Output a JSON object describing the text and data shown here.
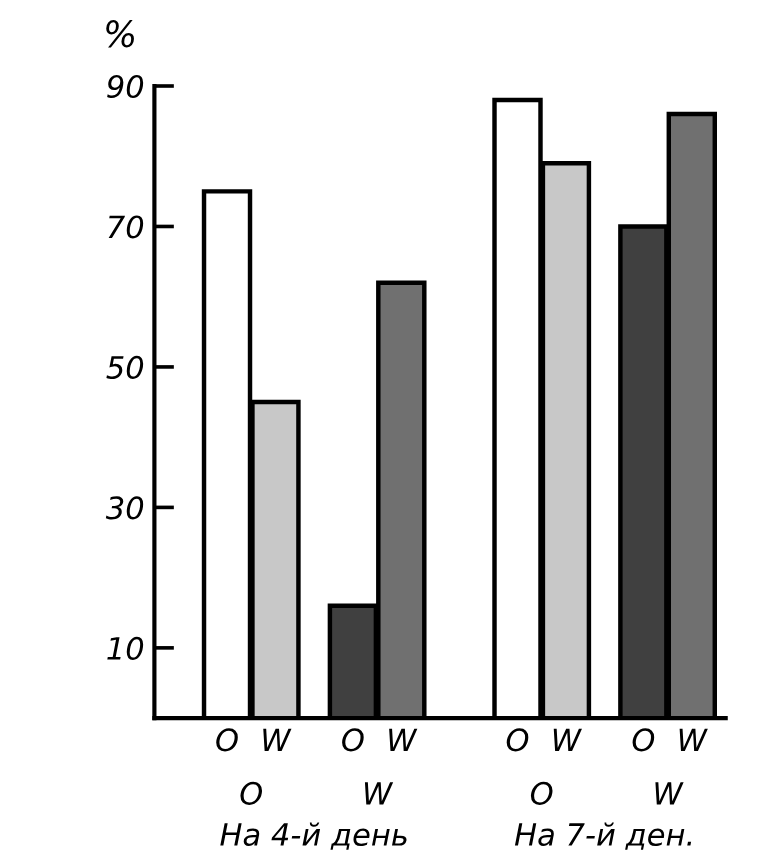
{
  "chart_data": {
    "type": "bar",
    "ylabel": "%",
    "categories": [
      "O",
      "W",
      "O",
      "W",
      "O",
      "W",
      "O",
      "W"
    ],
    "values": [
      75,
      45,
      16,
      62,
      88,
      79,
      70,
      86
    ],
    "colors": [
      "#ffffff",
      "#c8c8c8",
      "#404040",
      "#707070",
      "#ffffff",
      "#c8c8c8",
      "#404040",
      "#707070"
    ],
    "annotations": [
      "O",
      "W",
      "O",
      "W",
      "На 4-й день",
      "На 7-й ден."
    ],
    "ylim": [
      0,
      90
    ],
    "yticks": [
      10,
      30,
      50,
      70,
      90
    ],
    "grid": false,
    "legend": false
  }
}
